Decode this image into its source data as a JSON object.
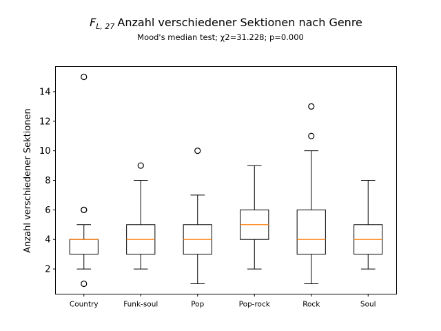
{
  "chart_data": {
    "type": "boxplot",
    "title_prefix": "F",
    "title_subscript": "L, 27",
    "title": "Anzahl verschiedener Sektionen nach Genre",
    "subtitle": "Mood's median test; χ2=31.228; p=0.000",
    "xlabel": "",
    "ylabel": "Anzahl verschiedener Sektionen",
    "ylim": [
      0.3,
      15.7
    ],
    "yticks": [
      2,
      4,
      6,
      8,
      10,
      12,
      14
    ],
    "grid": false,
    "colors": {
      "box": "#000000",
      "median": "#ff7f0e",
      "background": "#ffffff"
    },
    "categories": [
      "Country",
      "Funk-soul",
      "Pop",
      "Pop-rock",
      "Rock",
      "Soul"
    ],
    "boxes": [
      {
        "category": "Country",
        "whisker_low": 2,
        "q1": 3,
        "median": 4,
        "q3": 4,
        "whisker_high": 5,
        "outliers": [
          1,
          6,
          6,
          15
        ]
      },
      {
        "category": "Funk-soul",
        "whisker_low": 2,
        "q1": 3,
        "median": 4,
        "q3": 5,
        "whisker_high": 8,
        "outliers": [
          9
        ]
      },
      {
        "category": "Pop",
        "whisker_low": 1,
        "q1": 3,
        "median": 4,
        "q3": 5,
        "whisker_high": 7,
        "outliers": [
          10
        ]
      },
      {
        "category": "Pop-rock",
        "whisker_low": 2,
        "q1": 4,
        "median": 5,
        "q3": 6,
        "whisker_high": 9,
        "outliers": []
      },
      {
        "category": "Rock",
        "whisker_low": 1,
        "q1": 3,
        "median": 4,
        "q3": 6,
        "whisker_high": 10,
        "outliers": [
          11,
          13
        ]
      },
      {
        "category": "Soul",
        "whisker_low": 2,
        "q1": 3,
        "median": 4,
        "q3": 5,
        "whisker_high": 8,
        "outliers": []
      }
    ]
  }
}
